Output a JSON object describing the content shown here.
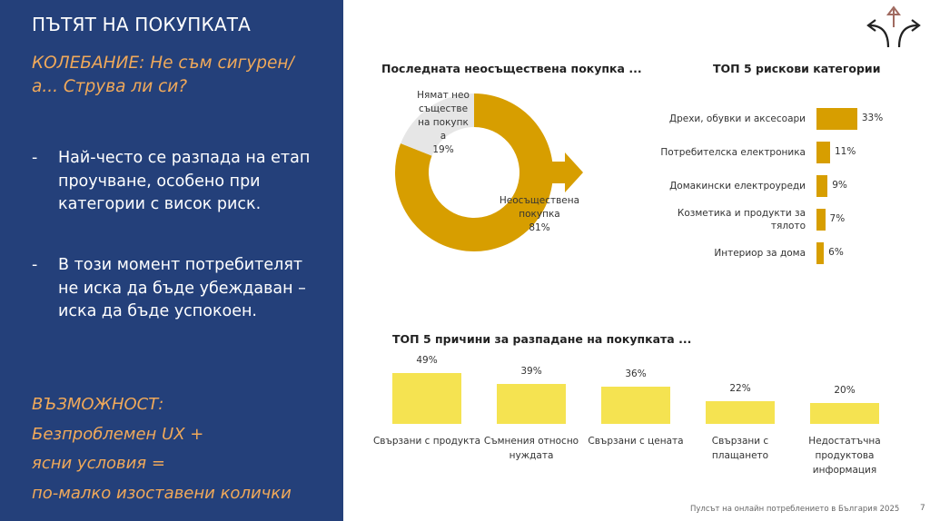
{
  "left_panel": {
    "title": "ПЪТЯТ НА ПОКУПКАТА",
    "subtitle": "КОЛЕБАНИЕ: Не съм сигурен/а... Струва ли си?",
    "bullets": [
      {
        "dash": "-",
        "text": "Най-често се разпада на етап проучване, особено при категории с висок риск."
      },
      {
        "dash": "-",
        "text": "В този момент потребителят не иска да бъде убеждаван – иска да бъде успокоен."
      }
    ],
    "opportunity": [
      "ВЪЗМОЖНОСТ:",
      "Безпроблемен UX +",
      "ясни условия =",
      "по-малко изоставени колички"
    ]
  },
  "icons": {
    "top_right": "diverging-arrows-icon",
    "donut_arrow": "arrow-right-icon"
  },
  "colors": {
    "panel": "#24407a",
    "accent": "#f0a95a",
    "gold": "#d79e00",
    "yellow": "#f5e351",
    "gray": "#e6e6e6"
  },
  "footer": {
    "text": "Пулсът на онлайн потреблението в България 2025",
    "page": "7"
  },
  "chart_data": [
    {
      "type": "pie",
      "title": "Последната неосъществена покупка ...",
      "slices": [
        {
          "label": "Неосъществена покупка",
          "value": 81,
          "value_label": "81%",
          "color": "#d79e00"
        },
        {
          "label": "Нямат неосъществена покупка",
          "value": 19,
          "value_label": "19%",
          "color": "#e6e6e6"
        }
      ]
    },
    {
      "type": "bar",
      "orientation": "horizontal",
      "title": "ТОП 5 рискови категории",
      "categories": [
        "Дрехи, обувки и аксесоари",
        "Потребителска електроника",
        "Домакински електроуреди",
        "Козметика и продукти за тялото",
        "Интериор за дома"
      ],
      "values": [
        33,
        11,
        9,
        7,
        6
      ],
      "value_labels": [
        "33%",
        "11%",
        "9%",
        "7%",
        "6%"
      ]
    },
    {
      "type": "bar",
      "orientation": "vertical",
      "title": "ТОП 5 причини за разпадане на покупката ...",
      "categories": [
        "Свързани с продукта",
        "Съмнения относно нуждата",
        "Свързани с цената",
        "Свързани с плащането",
        "Недостатъчна продуктова информация"
      ],
      "values": [
        49,
        39,
        36,
        22,
        20
      ],
      "value_labels": [
        "49%",
        "39%",
        "36%",
        "22%",
        "20%"
      ]
    }
  ]
}
